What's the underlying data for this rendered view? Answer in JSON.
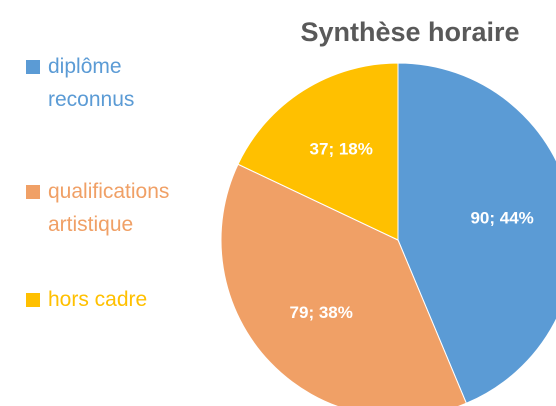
{
  "chart_data": {
    "type": "pie",
    "title": "Synthèse horaire",
    "categories": [
      "diplôme reconnus",
      "qualifications artistique",
      "hors cadre"
    ],
    "values": [
      90,
      79,
      37
    ],
    "value_labels": [
      "90; 44%",
      "79; 38%",
      "37; 18%"
    ],
    "colors": [
      "#5b9bd5",
      "#f0a066",
      "#ffc000"
    ],
    "legend": "left"
  }
}
